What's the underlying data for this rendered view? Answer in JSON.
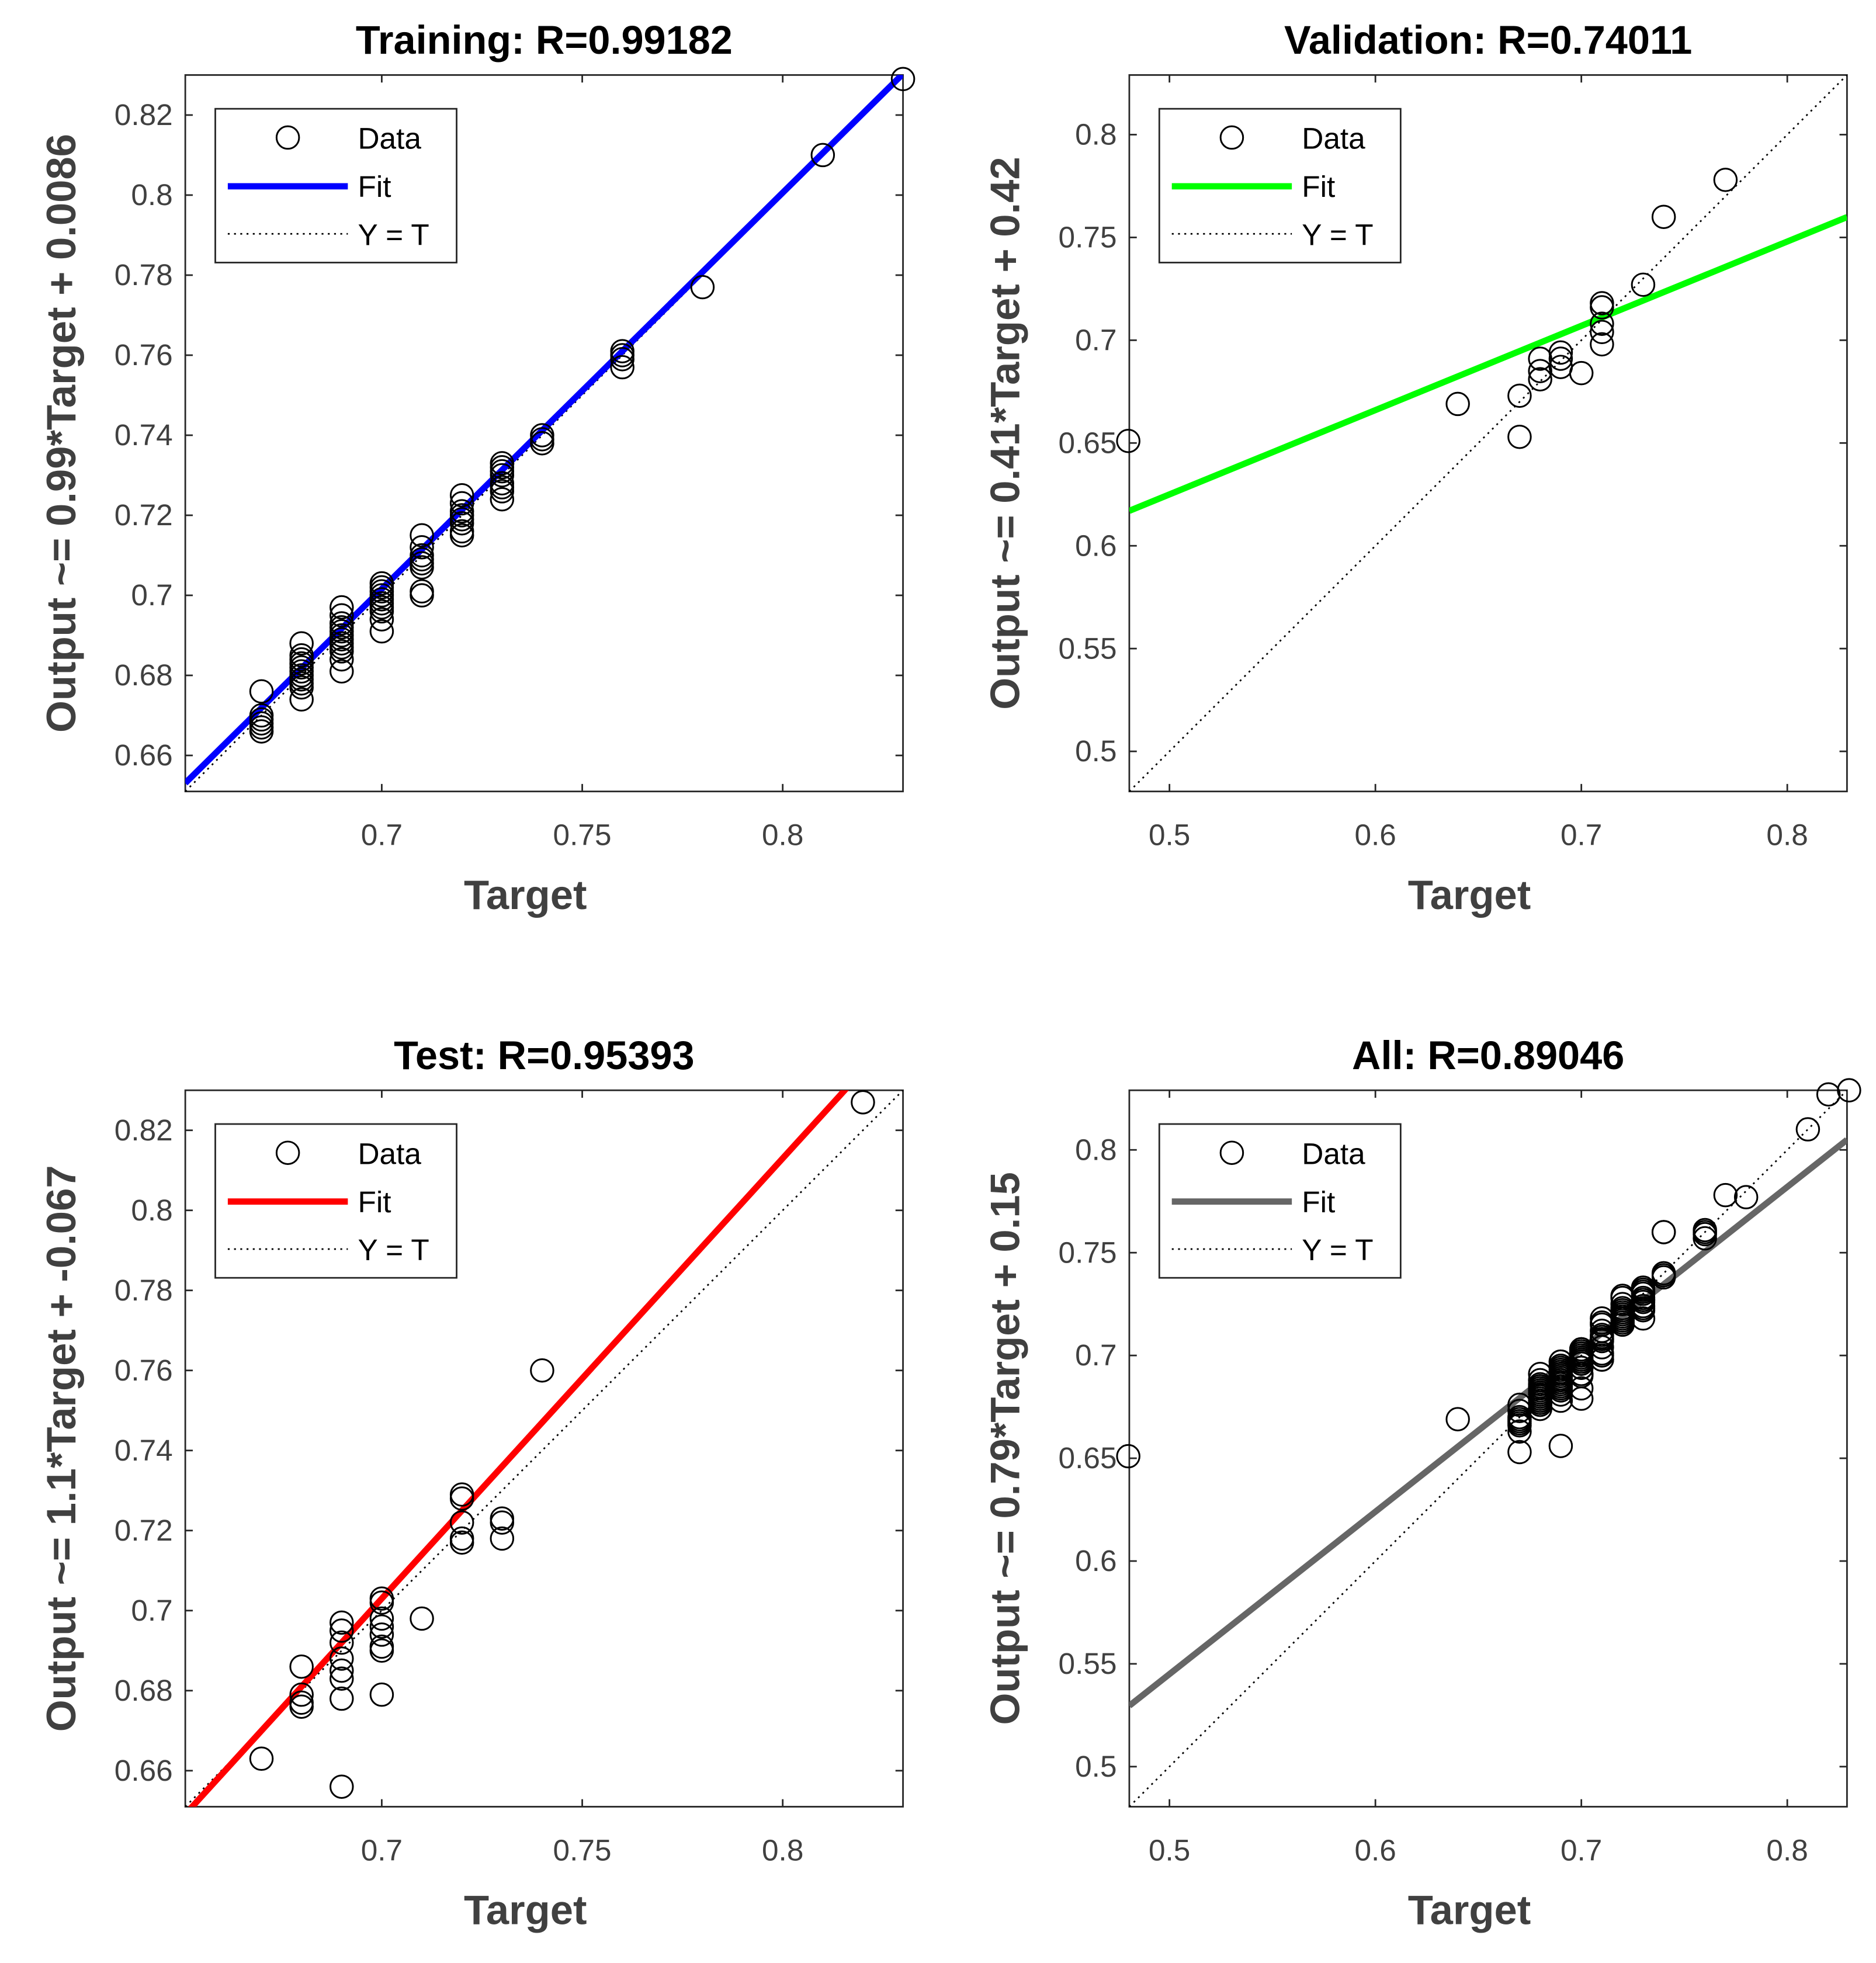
{
  "chart_data": [
    {
      "type": "scatter",
      "id": "training",
      "title": "Training: R=0.99182",
      "xlabel": "Target",
      "ylabel": "Output ~= 0.99*Target + 0.0086",
      "xlim": [
        0.651,
        0.83
      ],
      "ylim": [
        0.651,
        0.83
      ],
      "xticks": [
        0.7,
        0.75,
        0.8
      ],
      "xtick_labels": [
        "0.7",
        "0.75",
        "0.8"
      ],
      "yticks": [
        0.66,
        0.68,
        0.7,
        0.72,
        0.74,
        0.76,
        0.78,
        0.8,
        0.82
      ],
      "ytick_labels": [
        "0.66",
        "0.68",
        "0.7",
        "0.72",
        "0.74",
        "0.76",
        "0.78",
        "0.8",
        "0.82"
      ],
      "fit": {
        "slope": 0.99,
        "intercept": 0.0086,
        "color": "#0000ff"
      },
      "legend": {
        "placement": "top-left",
        "entries": [
          "Data",
          "Fit",
          "Y = T"
        ]
      },
      "points": [
        [
          0.67,
          0.676
        ],
        [
          0.67,
          0.67
        ],
        [
          0.67,
          0.669
        ],
        [
          0.67,
          0.668
        ],
        [
          0.67,
          0.667
        ],
        [
          0.67,
          0.666
        ],
        [
          0.68,
          0.688
        ],
        [
          0.68,
          0.685
        ],
        [
          0.68,
          0.684
        ],
        [
          0.68,
          0.683
        ],
        [
          0.68,
          0.682
        ],
        [
          0.68,
          0.681
        ],
        [
          0.68,
          0.68
        ],
        [
          0.68,
          0.679
        ],
        [
          0.68,
          0.678
        ],
        [
          0.68,
          0.677
        ],
        [
          0.68,
          0.674
        ],
        [
          0.69,
          0.697
        ],
        [
          0.69,
          0.695
        ],
        [
          0.69,
          0.693
        ],
        [
          0.69,
          0.692
        ],
        [
          0.69,
          0.691
        ],
        [
          0.69,
          0.69
        ],
        [
          0.69,
          0.689
        ],
        [
          0.69,
          0.688
        ],
        [
          0.69,
          0.687
        ],
        [
          0.69,
          0.686
        ],
        [
          0.69,
          0.684
        ],
        [
          0.69,
          0.681
        ],
        [
          0.7,
          0.703
        ],
        [
          0.7,
          0.702
        ],
        [
          0.7,
          0.701
        ],
        [
          0.7,
          0.7
        ],
        [
          0.7,
          0.699
        ],
        [
          0.7,
          0.698
        ],
        [
          0.7,
          0.697
        ],
        [
          0.7,
          0.696
        ],
        [
          0.7,
          0.694
        ],
        [
          0.7,
          0.691
        ],
        [
          0.71,
          0.715
        ],
        [
          0.71,
          0.712
        ],
        [
          0.71,
          0.71
        ],
        [
          0.71,
          0.709
        ],
        [
          0.71,
          0.708
        ],
        [
          0.71,
          0.707
        ],
        [
          0.71,
          0.701
        ],
        [
          0.71,
          0.7
        ],
        [
          0.72,
          0.725
        ],
        [
          0.72,
          0.723
        ],
        [
          0.72,
          0.721
        ],
        [
          0.72,
          0.72
        ],
        [
          0.72,
          0.719
        ],
        [
          0.72,
          0.718
        ],
        [
          0.72,
          0.716
        ],
        [
          0.72,
          0.715
        ],
        [
          0.73,
          0.733
        ],
        [
          0.73,
          0.732
        ],
        [
          0.73,
          0.731
        ],
        [
          0.73,
          0.73
        ],
        [
          0.73,
          0.728
        ],
        [
          0.73,
          0.727
        ],
        [
          0.73,
          0.726
        ],
        [
          0.73,
          0.724
        ],
        [
          0.74,
          0.74
        ],
        [
          0.74,
          0.739
        ],
        [
          0.74,
          0.738
        ],
        [
          0.76,
          0.761
        ],
        [
          0.76,
          0.76
        ],
        [
          0.76,
          0.759
        ],
        [
          0.76,
          0.757
        ],
        [
          0.78,
          0.777
        ],
        [
          0.81,
          0.81
        ],
        [
          0.83,
          0.829
        ]
      ]
    },
    {
      "type": "scatter",
      "id": "validation",
      "title": "Validation: R=0.74011",
      "xlabel": "Target",
      "ylabel": "Output ~= 0.41*Target + 0.42",
      "xlim": [
        0.4805,
        0.829
      ],
      "ylim": [
        0.4805,
        0.829
      ],
      "xticks": [
        0.5,
        0.6,
        0.7,
        0.8
      ],
      "xtick_labels": [
        "0.5",
        "0.6",
        "0.7",
        "0.8"
      ],
      "yticks": [
        0.5,
        0.55,
        0.6,
        0.65,
        0.7,
        0.75,
        0.8
      ],
      "ytick_labels": [
        "0.5",
        "0.55",
        "0.6",
        "0.65",
        "0.7",
        "0.75",
        "0.8"
      ],
      "fit": {
        "slope": 0.41,
        "intercept": 0.42,
        "color": "#00ff00"
      },
      "legend": {
        "placement": "top-left",
        "entries": [
          "Data",
          "Fit",
          "Y = T"
        ]
      },
      "points": [
        [
          0.48,
          0.651
        ],
        [
          0.64,
          0.669
        ],
        [
          0.67,
          0.673
        ],
        [
          0.67,
          0.653
        ],
        [
          0.68,
          0.691
        ],
        [
          0.68,
          0.685
        ],
        [
          0.68,
          0.681
        ],
        [
          0.69,
          0.694
        ],
        [
          0.69,
          0.691
        ],
        [
          0.69,
          0.687
        ],
        [
          0.7,
          0.684
        ],
        [
          0.71,
          0.718
        ],
        [
          0.71,
          0.716
        ],
        [
          0.71,
          0.708
        ],
        [
          0.71,
          0.704
        ],
        [
          0.71,
          0.698
        ],
        [
          0.73,
          0.727
        ],
        [
          0.74,
          0.76
        ],
        [
          0.77,
          0.778
        ]
      ]
    },
    {
      "type": "scatter",
      "id": "test",
      "title": "Test: R=0.95393",
      "xlabel": "Target",
      "ylabel": "Output ~= 1.1*Target + -0.067",
      "xlim": [
        0.651,
        0.83
      ],
      "ylim": [
        0.651,
        0.83
      ],
      "xticks": [
        0.7,
        0.75,
        0.8
      ],
      "xtick_labels": [
        "0.7",
        "0.75",
        "0.8"
      ],
      "yticks": [
        0.66,
        0.68,
        0.7,
        0.72,
        0.74,
        0.76,
        0.78,
        0.8,
        0.82
      ],
      "ytick_labels": [
        "0.66",
        "0.68",
        "0.7",
        "0.72",
        "0.74",
        "0.76",
        "0.78",
        "0.8",
        "0.82"
      ],
      "fit": {
        "slope": 1.1,
        "intercept": -0.067,
        "color": "#ff0000"
      },
      "legend": {
        "placement": "top-left",
        "entries": [
          "Data",
          "Fit",
          "Y = T"
        ]
      },
      "points": [
        [
          0.67,
          0.663
        ],
        [
          0.68,
          0.686
        ],
        [
          0.68,
          0.679
        ],
        [
          0.68,
          0.677
        ],
        [
          0.68,
          0.676
        ],
        [
          0.69,
          0.697
        ],
        [
          0.69,
          0.695
        ],
        [
          0.69,
          0.692
        ],
        [
          0.69,
          0.688
        ],
        [
          0.69,
          0.685
        ],
        [
          0.69,
          0.683
        ],
        [
          0.69,
          0.678
        ],
        [
          0.69,
          0.656
        ],
        [
          0.7,
          0.703
        ],
        [
          0.7,
          0.702
        ],
        [
          0.7,
          0.698
        ],
        [
          0.7,
          0.696
        ],
        [
          0.7,
          0.694
        ],
        [
          0.7,
          0.691
        ],
        [
          0.7,
          0.69
        ],
        [
          0.7,
          0.679
        ],
        [
          0.71,
          0.698
        ],
        [
          0.72,
          0.729
        ],
        [
          0.72,
          0.728
        ],
        [
          0.72,
          0.722
        ],
        [
          0.72,
          0.718
        ],
        [
          0.72,
          0.717
        ],
        [
          0.73,
          0.723
        ],
        [
          0.73,
          0.722
        ],
        [
          0.73,
          0.718
        ],
        [
          0.74,
          0.76
        ],
        [
          0.82,
          0.827
        ]
      ]
    },
    {
      "type": "scatter",
      "id": "all",
      "title": "All: R=0.89046",
      "xlabel": "Target",
      "ylabel": "Output ~= 0.79*Target + 0.15",
      "xlim": [
        0.4805,
        0.829
      ],
      "ylim": [
        0.4805,
        0.829
      ],
      "xticks": [
        0.5,
        0.6,
        0.7,
        0.8
      ],
      "xtick_labels": [
        "0.5",
        "0.6",
        "0.7",
        "0.8"
      ],
      "yticks": [
        0.5,
        0.55,
        0.6,
        0.65,
        0.7,
        0.75,
        0.8
      ],
      "ytick_labels": [
        "0.5",
        "0.55",
        "0.6",
        "0.65",
        "0.7",
        "0.75",
        "0.8"
      ],
      "fit": {
        "slope": 0.79,
        "intercept": 0.15,
        "color": "#666666"
      },
      "legend": {
        "placement": "top-left",
        "entries": [
          "Data",
          "Fit",
          "Y = T"
        ]
      },
      "points_from": [
        "training",
        "validation",
        "test"
      ]
    }
  ]
}
